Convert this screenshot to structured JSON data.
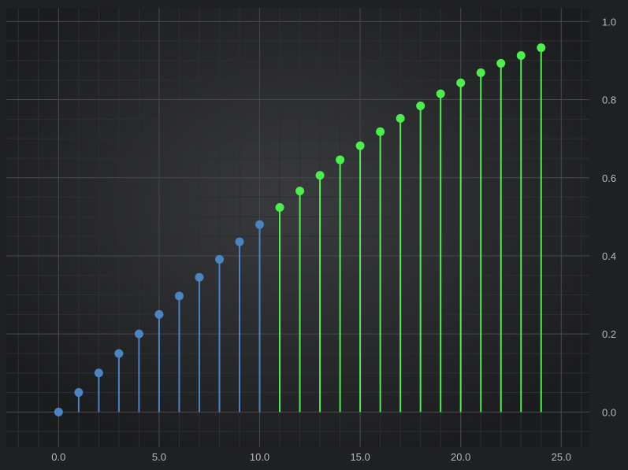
{
  "chart_data": {
    "type": "stem",
    "x": [
      0,
      1,
      2,
      3,
      4,
      5,
      6,
      7,
      8,
      9,
      10,
      11,
      12,
      13,
      14,
      15,
      16,
      17,
      18,
      19,
      20,
      21,
      22,
      23,
      24
    ],
    "y": [
      0.0,
      0.05,
      0.1,
      0.15,
      0.2,
      0.25,
      0.297,
      0.345,
      0.391,
      0.436,
      0.48,
      0.524,
      0.566,
      0.606,
      0.646,
      0.682,
      0.718,
      0.752,
      0.784,
      0.815,
      0.843,
      0.869,
      0.893,
      0.913,
      0.933
    ],
    "color_threshold_x": 10,
    "colors": {
      "below_threshold": "#4a84c1",
      "above_threshold": "#4cf04c"
    },
    "xlim": [
      -2.6,
      26.4
    ],
    "ylim": [
      -0.09,
      1.035
    ],
    "x_ticks": [
      0,
      5,
      10,
      15,
      20,
      25
    ],
    "x_tick_labels": [
      "0.0",
      "5.0",
      "10.0",
      "15.0",
      "20.0",
      "25.0"
    ],
    "y_ticks": [
      0,
      0.2,
      0.4,
      0.6,
      0.8,
      1.0
    ],
    "y_tick_labels": [
      "0.0",
      "0.2",
      "0.4",
      "0.6",
      "0.8",
      "1.0"
    ],
    "x_minor_step": 1,
    "y_minor_step": 0.05,
    "grid": true,
    "y_axis_side": "right",
    "legend": "none",
    "theme": {
      "background_center": "#3a3b3e",
      "background_edge": "#1b1c1e",
      "major_grid": "#47494d",
      "minor_grid": "#2c2e31",
      "tick_label": "#b7b9bd"
    }
  }
}
